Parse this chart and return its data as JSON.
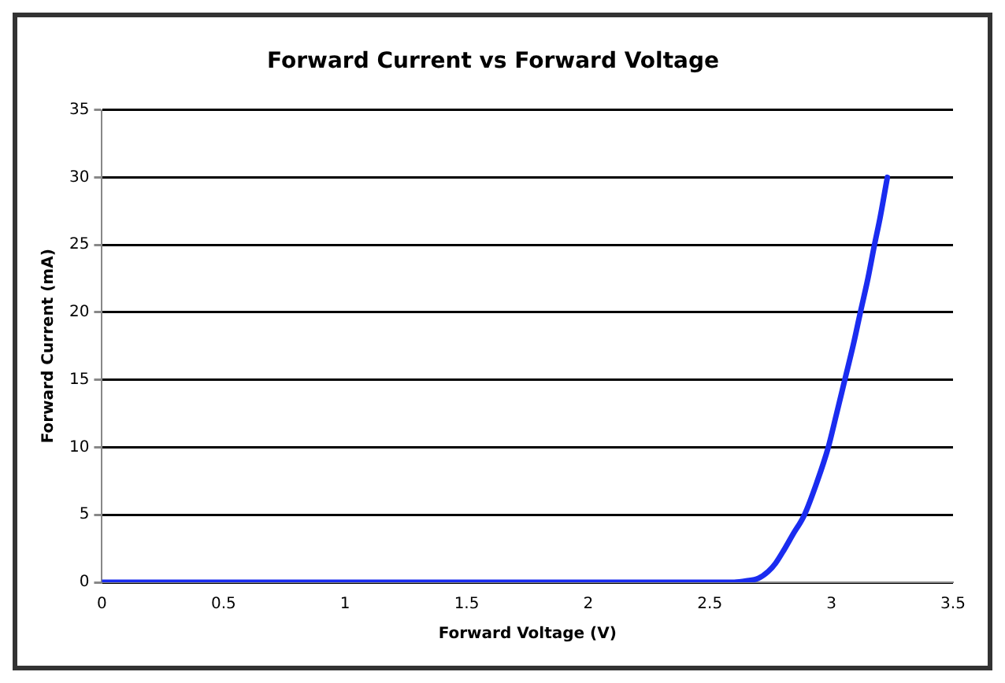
{
  "chart_data": {
    "type": "line",
    "title": "Forward Current vs Forward Voltage",
    "xlabel": "Forward Voltage (V)",
    "ylabel": "Forward Current (mA)",
    "series": [
      {
        "color": "#1a2cf0",
        "x": [
          0,
          0.5,
          1,
          1.5,
          2,
          2.5,
          2.6,
          2.65,
          2.7,
          2.74,
          2.77,
          2.805,
          2.84,
          2.889,
          2.94,
          2.987,
          3.02,
          3.055,
          3.09,
          3.119,
          3.15,
          3.177,
          3.2,
          3.23
        ],
        "values": [
          0,
          0,
          0,
          0,
          0,
          0,
          0,
          0.1,
          0.3,
          0.8,
          1.4,
          2.4,
          3.5,
          5,
          7.4,
          10,
          12.4,
          15,
          17.6,
          20,
          22.5,
          25,
          27,
          30
        ]
      }
    ],
    "xlim": [
      0,
      3.5
    ],
    "xticks": [
      0,
      0.5,
      1,
      1.5,
      2,
      2.5,
      3,
      3.5
    ],
    "ylim": [
      0,
      35
    ],
    "yticks": [
      0,
      5,
      10,
      15,
      20,
      25,
      30,
      35
    ],
    "grid": "y",
    "legend": false,
    "marker": "none",
    "line_style": "solid"
  }
}
